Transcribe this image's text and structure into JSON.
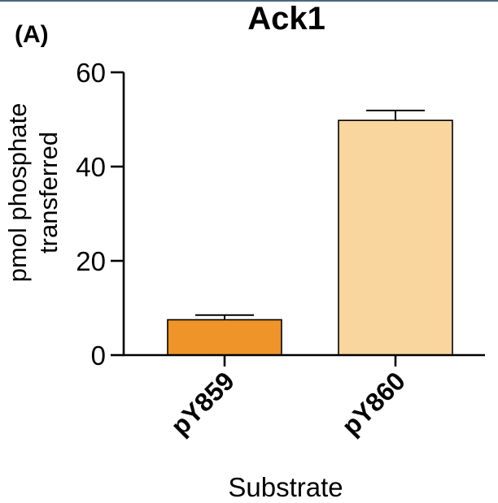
{
  "panel_label": "(A)",
  "chart_data": {
    "type": "bar",
    "title": "Ack1",
    "xlabel": "Substrate",
    "ylabel": [
      "pmol phosphate",
      "transferred"
    ],
    "categories": [
      "pY859",
      "pY860"
    ],
    "values": [
      7.5,
      49.8
    ],
    "error": [
      1.0,
      2.1
    ],
    "colors": [
      "#ef9429",
      "#f9d69d"
    ],
    "ylim": [
      0,
      60
    ],
    "yticks": [
      0,
      20,
      40,
      60
    ],
    "grid": false
  }
}
